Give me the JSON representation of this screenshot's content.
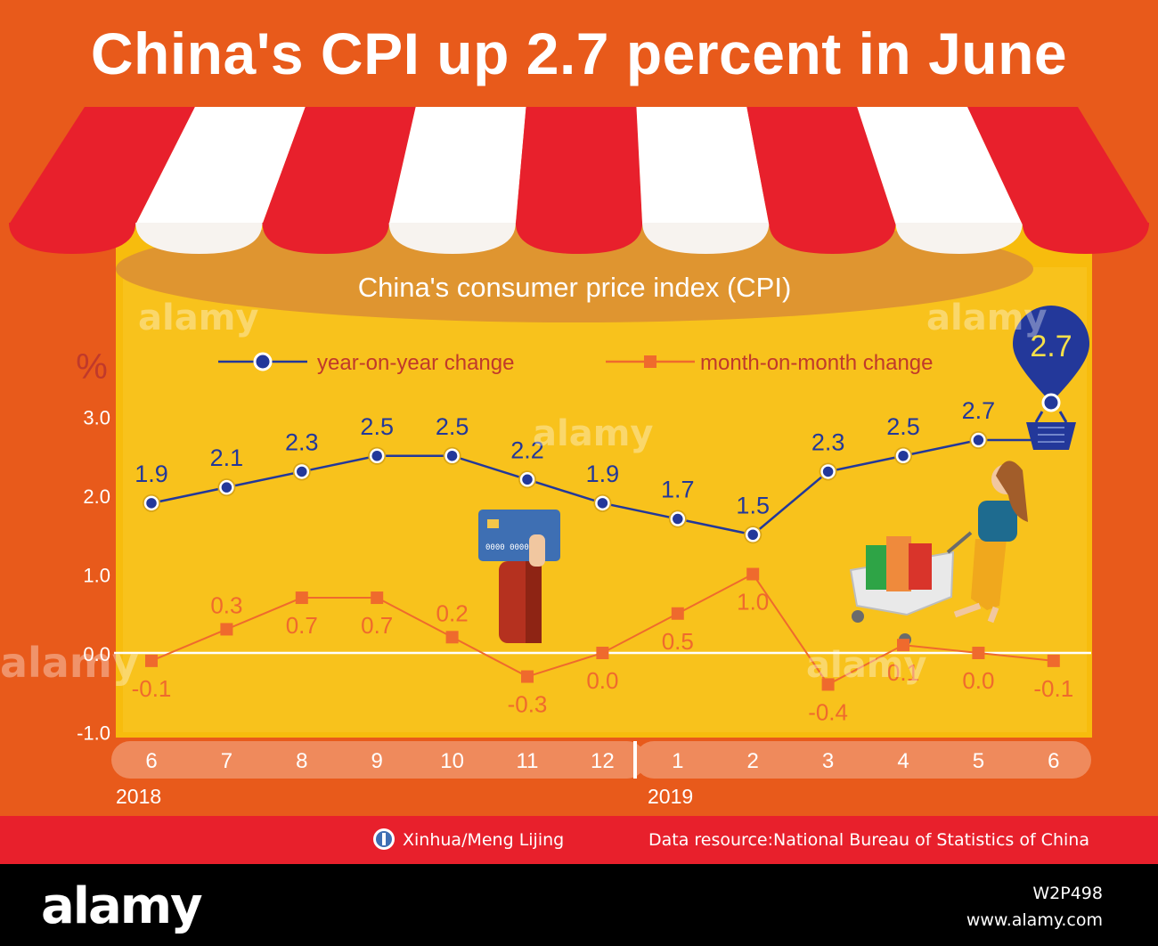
{
  "page": {
    "title": "China's CPI up 2.7 percent in June",
    "credit_author": "Xinhua/Meng Lijing",
    "credit_source": "Data resource:National Bureau of Statistics of China",
    "stock_logo": "alamy",
    "stock_id": "W2P498",
    "stock_url": "www.alamy.com",
    "watermark": "alamy"
  },
  "colors": {
    "background": "#e85a1b",
    "panel": "#f7bc0d",
    "awning_red": "#e8202c",
    "awning_white": "#ffffff",
    "yoy_line": "#23389a",
    "mom_line": "#ef6a2d",
    "footer": "#e8202c"
  },
  "chart_data": {
    "type": "line",
    "title": "China's consumer price index (CPI)",
    "ylabel": "%",
    "ylim": [
      -1.0,
      3.0
    ],
    "yticks": [
      "3.0",
      "2.0",
      "1.0",
      "0.0",
      "-1.0"
    ],
    "categories": [
      "6",
      "7",
      "8",
      "9",
      "10",
      "11",
      "12",
      "1",
      "2",
      "3",
      "4",
      "5",
      "6"
    ],
    "year_labels": [
      "2018",
      "2019"
    ],
    "series": [
      {
        "name": "year-on-year change",
        "values": [
          1.9,
          2.1,
          2.3,
          2.5,
          2.5,
          2.2,
          1.9,
          1.7,
          1.5,
          2.3,
          2.5,
          2.7,
          2.7
        ],
        "labels": [
          "1.9",
          "2.1",
          "2.3",
          "2.5",
          "2.5",
          "2.2",
          "1.9",
          "1.7",
          "1.5",
          "2.3",
          "2.5",
          "2.7",
          ""
        ]
      },
      {
        "name": "month-on-month change",
        "values": [
          -0.1,
          0.3,
          0.7,
          0.7,
          0.2,
          -0.3,
          0.0,
          0.5,
          1.0,
          -0.4,
          0.1,
          0.0,
          -0.1
        ],
        "labels": [
          "-0.1",
          "0.3",
          "0.7",
          "0.7",
          "0.2",
          "-0.3",
          "0.0",
          "0.5",
          "1.0",
          "-0.4",
          "0.1",
          "0.0",
          "-0.1"
        ]
      }
    ],
    "callout": "2.7"
  }
}
